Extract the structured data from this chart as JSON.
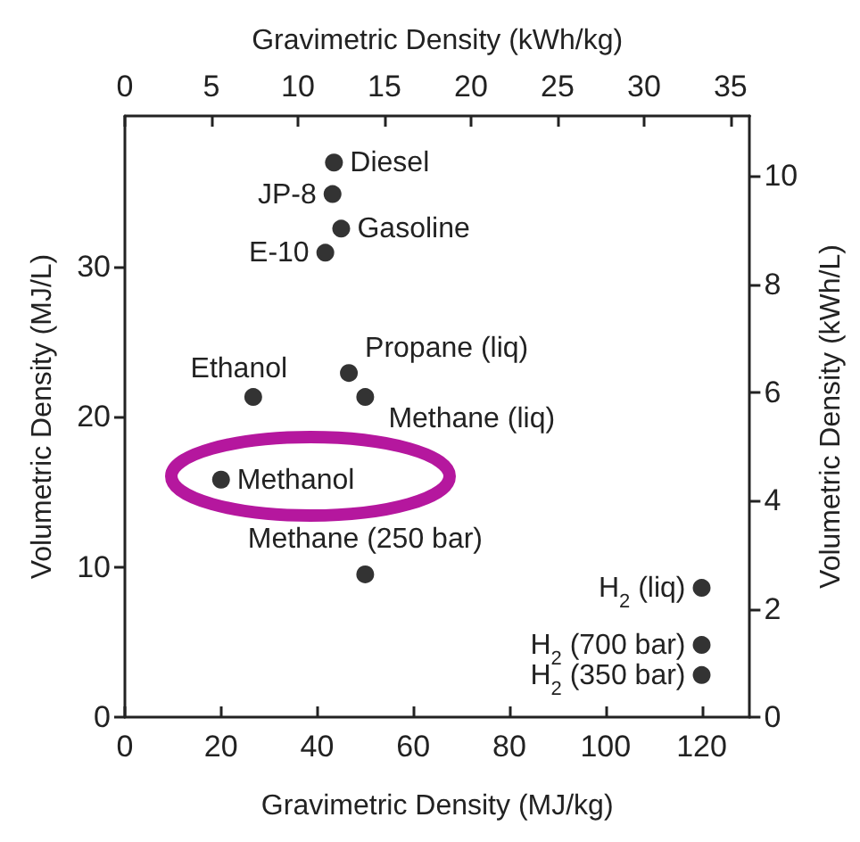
{
  "chart_data": {
    "type": "scatter",
    "xlabel": "Gravimetric Density (MJ/kg)",
    "ylabel": "Volumetric Density (MJ/L)",
    "x2label": "Gravimetric Density (kWh/kg)",
    "y2label": "Volumetric Density (kWh/L)",
    "series": [
      {
        "color": "#000000",
        "x": [
          43.5,
          43.2,
          45,
          41.7,
          26.7,
          46.6,
          50,
          20,
          50,
          120,
          120,
          120
        ],
        "values": [
          36.9,
          34.8,
          32.5,
          30.9,
          21.3,
          22.9,
          21.3,
          15.8,
          9.5,
          8.6,
          4.8,
          2.8
        ]
      }
    ],
    "xlim": [
      0,
      130
    ],
    "xticks": [
      0,
      20,
      40,
      60,
      80,
      100,
      120
    ],
    "ylim": [
      0,
      40
    ],
    "yticks": [
      0,
      10,
      20,
      30
    ],
    "x2lim": [
      0,
      36.11
    ],
    "x2ticks": [
      0,
      5,
      10,
      15,
      20,
      25,
      30,
      35
    ],
    "y2lim": [
      0,
      11.11
    ],
    "y2ticks": [
      0,
      2,
      4,
      6,
      8,
      10
    ],
    "annotations": [
      {
        "text": "Diesel",
        "x": 43.5,
        "y": 36.9
      },
      {
        "text": "JP-8",
        "x": 43.2,
        "y": 34.8
      },
      {
        "text": "Gasoline",
        "x": 45,
        "y": 32.5
      },
      {
        "text": "E-10",
        "x": 41.7,
        "y": 30.9
      },
      {
        "text": "Ethanol",
        "x": 26.7,
        "y": 21.3
      },
      {
        "text": "Propane (liq)",
        "x": 46.6,
        "y": 22.9
      },
      {
        "text": "Methane (liq)",
        "x": 50,
        "y": 21.3
      },
      {
        "text": "Methanol",
        "x": 20,
        "y": 15.8
      },
      {
        "text": "Methane (250 bar)",
        "x": 50,
        "y": 9.5
      },
      {
        "text": "H$_{2}$ (liq)",
        "x": 120,
        "y": 8.6
      },
      {
        "text": "H$_{2}$ (700 bar)",
        "x": 120,
        "y": 4.8
      },
      {
        "text": "H$_{2}$ (350 bar)",
        "x": 120,
        "y": 2.8
      }
    ],
    "marker": "circle",
    "grid": false
  }
}
